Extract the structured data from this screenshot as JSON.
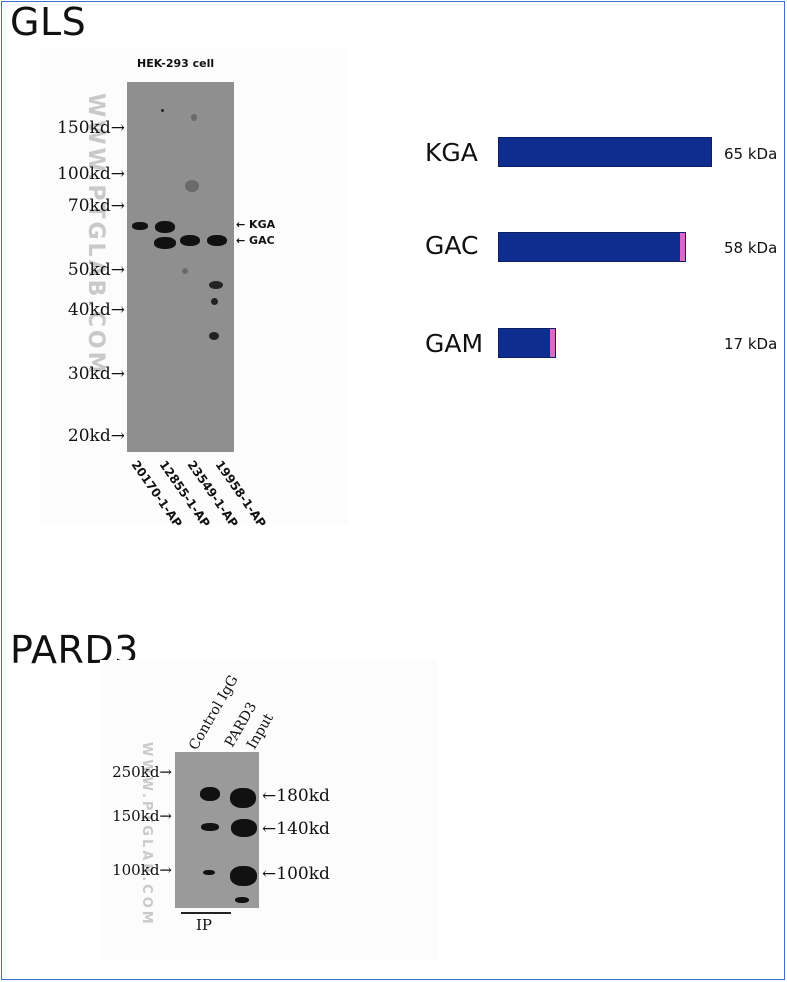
{
  "gls": {
    "title": "GLS",
    "blot": {
      "cell_line": "HEK-293 cell",
      "watermark": "WWW.PTGLAB.COM",
      "mw_markers": [
        "150kd",
        "100kd",
        "70kd",
        "50kd",
        "40kd",
        "30kd",
        "20kd"
      ],
      "band_labels": [
        "KGA",
        "GAC"
      ],
      "lanes": [
        "20170-1-AP",
        "12855-1-AP",
        "23549-1-AP",
        "19958-1-AP"
      ]
    },
    "isoforms": [
      {
        "name": "KGA",
        "size": "65 kDa",
        "relative_length": 1.0,
        "tail": false
      },
      {
        "name": "GAC",
        "size": "58 kDa",
        "relative_length": 0.88,
        "tail": true
      },
      {
        "name": "GAM",
        "size": "17 kDa",
        "relative_length": 0.27,
        "tail": true
      }
    ],
    "colors": {
      "bar": "#0e2d8f",
      "tail": "#d86ac0"
    }
  },
  "pard3": {
    "title": "PARD3",
    "blot": {
      "watermark": "WWW.PTGLAB.COM",
      "column_labels": [
        "Control IgG",
        "PARD3",
        "Input"
      ],
      "mw_markers": [
        "250kd",
        "150kd",
        "100kd"
      ],
      "band_labels": [
        "180kd",
        "140kd",
        "100kd"
      ],
      "group_label": "IP"
    }
  },
  "colors": {
    "frame": "#3c6fd1"
  }
}
